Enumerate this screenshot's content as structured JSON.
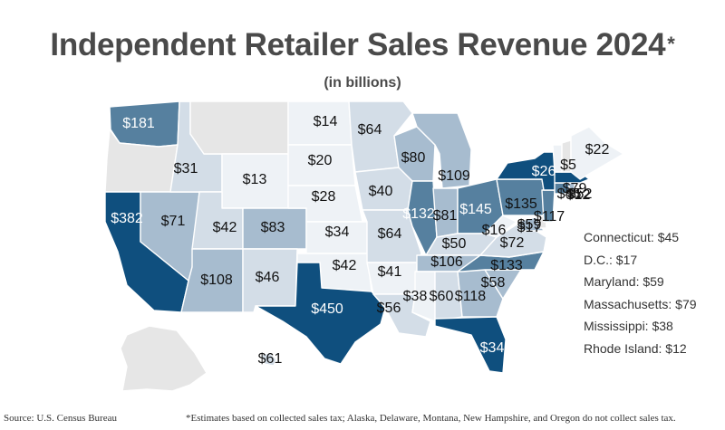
{
  "header": {
    "title": "Independent Retailer Sales Revenue 2024",
    "title_mark": "*",
    "subtitle": "(in billions)"
  },
  "colors": {
    "no_data": "#e6e6e6",
    "scale_lightest": "#eef2f6",
    "scale_light": "#d3dde7",
    "scale_mid": "#a7bccf",
    "scale_strong": "#56809f",
    "scale_darkest": "#0f4f7e"
  },
  "map": {
    "states": [
      {
        "name": "WA",
        "value": "$181",
        "color": "#56809f"
      },
      {
        "name": "OR",
        "value": "",
        "color": "#e6e6e6"
      },
      {
        "name": "CA",
        "value": "$382",
        "color": "#0f4f7e"
      },
      {
        "name": "NV",
        "value": "$71",
        "color": "#a7bccf"
      },
      {
        "name": "ID",
        "value": "$31",
        "color": "#d3dde7"
      },
      {
        "name": "MT",
        "value": "",
        "color": "#e6e6e6"
      },
      {
        "name": "WY",
        "value": "$13",
        "color": "#eef2f6"
      },
      {
        "name": "UT",
        "value": "$42",
        "color": "#d3dde7"
      },
      {
        "name": "AZ",
        "value": "$108",
        "color": "#a7bccf"
      },
      {
        "name": "CO",
        "value": "$83",
        "color": "#a7bccf"
      },
      {
        "name": "NM",
        "value": "$46",
        "color": "#d3dde7"
      },
      {
        "name": "ND",
        "value": "$14",
        "color": "#eef2f6"
      },
      {
        "name": "SD",
        "value": "$20",
        "color": "#eef2f6"
      },
      {
        "name": "NE",
        "value": "$28",
        "color": "#eef2f6"
      },
      {
        "name": "KS",
        "value": "$34",
        "color": "#eef2f6"
      },
      {
        "name": "OK",
        "value": "$42",
        "color": "#eef2f6"
      },
      {
        "name": "TX",
        "value": "$450",
        "color": "#0f4f7e"
      },
      {
        "name": "MN",
        "value": "$64",
        "color": "#d3dde7"
      },
      {
        "name": "IA",
        "value": "$40",
        "color": "#d3dde7"
      },
      {
        "name": "MO",
        "value": "$64",
        "color": "#d3dde7"
      },
      {
        "name": "AR",
        "value": "$41",
        "color": "#eef2f6"
      },
      {
        "name": "LA",
        "value": "$56",
        "color": "#d3dde7"
      },
      {
        "name": "WI",
        "value": "$80",
        "color": "#a7bccf"
      },
      {
        "name": "IL",
        "value": "$132",
        "color": "#56809f"
      },
      {
        "name": "MI",
        "value": "$109",
        "color": "#a7bccf"
      },
      {
        "name": "IN",
        "value": "$81",
        "color": "#a7bccf"
      },
      {
        "name": "OH",
        "value": "$145",
        "color": "#56809f"
      },
      {
        "name": "KY",
        "value": "$50",
        "color": "#d3dde7"
      },
      {
        "name": "TN",
        "value": "$106",
        "color": "#a7bccf"
      },
      {
        "name": "MS",
        "value": "$38",
        "color": "#eef2f6"
      },
      {
        "name": "AL",
        "value": "$60",
        "color": "#d3dde7"
      },
      {
        "name": "GA",
        "value": "$118",
        "color": "#a7bccf"
      },
      {
        "name": "FL",
        "value": "$34",
        "color": "#0f4f7e"
      },
      {
        "name": "SC",
        "value": "$58",
        "color": "#a7bccf"
      },
      {
        "name": "NC",
        "value": "$133",
        "color": "#56809f"
      },
      {
        "name": "VA",
        "value": "$72",
        "color": "#d3dde7"
      },
      {
        "name": "WV",
        "value": "$16",
        "color": "#eef2f6"
      },
      {
        "name": "MD",
        "value": "$59",
        "color": "#a7bccf"
      },
      {
        "name": "DE",
        "value": "",
        "color": "#e6e6e6"
      },
      {
        "name": "PA",
        "value": "$135",
        "color": "#56809f"
      },
      {
        "name": "NJ",
        "value": "$117",
        "color": "#56809f"
      },
      {
        "name": "NY",
        "value": "$26",
        "color": "#0f4f7e"
      },
      {
        "name": "CT",
        "value": "$45",
        "color": "#56809f"
      },
      {
        "name": "RI",
        "value": "$12",
        "color": "#a7bccf"
      },
      {
        "name": "MA",
        "value": "$79",
        "color": "#0f4f7e"
      },
      {
        "name": "VT",
        "value": "$5",
        "color": "#eef2f6"
      },
      {
        "name": "NH",
        "value": "",
        "color": "#e6e6e6"
      },
      {
        "name": "ME",
        "value": "$22",
        "color": "#eef2f6"
      },
      {
        "name": "AK",
        "value": "",
        "color": "#e6e6e6"
      },
      {
        "name": "HI",
        "value": "$61",
        "color": "#d3dde7"
      }
    ],
    "extra_labels": [
      "$17",
      "$52"
    ]
  },
  "side_list": [
    "Connecticut: $45",
    "D.C.: $17",
    "Maryland: $59",
    "Massachusetts: $79",
    "Mississippi: $38",
    "Rhode Island: $12"
  ],
  "footer": {
    "source": "Source: U.S. Census Bureau",
    "note": "*Estimates based on collected sales tax; Alaska, Delaware, Montana, New Hampshire, and Oregon do not collect sales tax."
  }
}
